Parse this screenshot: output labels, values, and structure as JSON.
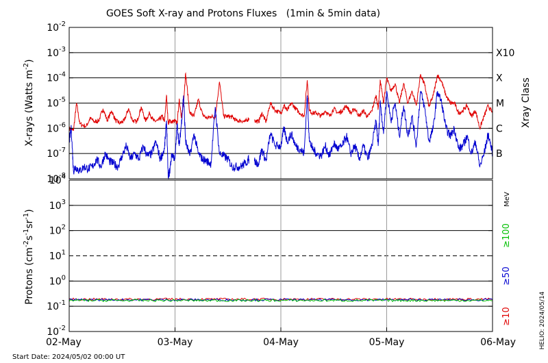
{
  "chart_data": [
    {
      "type": "line",
      "title": "GOES Soft X-ray and Protons Fluxes   (1min & 5min data)",
      "ylabel": "X-rays (Watts m^-2)",
      "ylabel_main": "X-rays (Watts m",
      "ylabel_sup": "-2",
      "ylabel_close": ")",
      "y_scale": "log",
      "ylim": [
        1e-08,
        0.01
      ],
      "ytick_exponents": [
        "-2",
        "-3",
        "-4",
        "-5",
        "-6",
        "-7",
        "-8"
      ],
      "grid_lines": [
        0.001,
        0.0001,
        1e-05,
        1e-06,
        1e-07
      ],
      "right_axis_label": "Xray Class",
      "class_labels": [
        {
          "label": "X10",
          "level": 0.001
        },
        {
          "label": "X",
          "level": 0.0001
        },
        {
          "label": "M",
          "level": 1e-05
        },
        {
          "label": "C",
          "level": 1e-06
        },
        {
          "label": "B",
          "level": 1e-07
        }
      ],
      "x_range_days": [
        0,
        4
      ],
      "colors": {
        "long_channel": "#e00000",
        "short_channel": "#0000d0",
        "grid": "#000000",
        "day_lines": "#9a9a9a"
      },
      "series": [
        {
          "channel": "long",
          "color": "#e00000",
          "x_days": [
            0.0,
            0.04,
            0.07,
            0.1,
            0.16,
            0.2,
            0.24,
            0.28,
            0.32,
            0.36,
            0.4,
            0.44,
            0.48,
            0.52,
            0.56,
            0.6,
            0.64,
            0.68,
            0.72,
            0.76,
            0.8,
            0.84,
            0.88,
            0.9,
            0.92,
            0.935,
            0.95,
            0.97,
            1.0,
            1.02,
            1.04,
            1.06,
            1.08,
            1.1,
            1.14,
            1.18,
            1.22,
            1.26,
            1.3,
            1.34,
            1.38,
            1.42,
            1.46,
            1.5,
            1.54,
            1.58,
            1.62,
            1.66,
            1.7
          ],
          "y": [
            1e-06,
            8e-07,
            1e-05,
            1.5e-06,
            1.2e-06,
            2.5e-06,
            1.8e-06,
            2e-06,
            6e-06,
            2e-06,
            5e-06,
            2e-06,
            1.6e-06,
            2e-06,
            6e-06,
            2e-06,
            1.8e-06,
            7e-06,
            2e-06,
            4e-06,
            1.9e-06,
            2e-06,
            3e-06,
            1.8e-06,
            2e-05,
            1.6e-06,
            2e-06,
            1.8e-06,
            2e-06,
            1.5e-06,
            1.5e-05,
            2.5e-06,
            1e-05,
            0.00015,
            4e-06,
            3e-06,
            1.4e-05,
            3.5e-06,
            2.5e-06,
            3e-06,
            2.7e-06,
            7e-05,
            3e-06,
            3e-06,
            2.8e-06,
            2e-06,
            2e-06,
            1.8e-06,
            2.5e-06
          ]
        },
        {
          "channel": "long",
          "color": "#e00000",
          "x_days": [
            1.75,
            1.79,
            1.82,
            1.86,
            1.9,
            1.95,
            2.0,
            2.03,
            2.06,
            2.1,
            2.14,
            2.18,
            2.22,
            2.25,
            2.27,
            2.3,
            2.34,
            2.38,
            2.42,
            2.46,
            2.5,
            2.54,
            2.58,
            2.62,
            2.66,
            2.7,
            2.74,
            2.78,
            2.82,
            2.86,
            2.9,
            2.92,
            2.94,
            2.97,
            3.0,
            3.04,
            3.08,
            3.12,
            3.16,
            3.2,
            3.24,
            3.28,
            3.32,
            3.36,
            3.4,
            3.44,
            3.48,
            3.52,
            3.56,
            3.6,
            3.64,
            3.68,
            3.72,
            3.76,
            3.8,
            3.84,
            3.88,
            3.92,
            3.96,
            4.0
          ],
          "y": [
            2e-06,
            1.8e-06,
            4e-06,
            1.8e-06,
            1e-05,
            5e-06,
            4e-06,
            8e-06,
            5e-06,
            1e-05,
            6e-06,
            4e-06,
            3e-06,
            8e-05,
            5e-06,
            4e-06,
            4e-06,
            3e-06,
            5e-06,
            3e-06,
            6e-06,
            4e-06,
            5e-06,
            8e-06,
            4e-06,
            6e-06,
            3e-06,
            5e-06,
            2.8e-06,
            5e-06,
            2e-05,
            6e-06,
            8e-05,
            1e-05,
            0.0001,
            3e-05,
            6e-05,
            1e-05,
            6e-05,
            1e-05,
            3e-05,
            8e-06,
            0.00014,
            5e-05,
            7e-06,
            2e-05,
            0.00013,
            7e-05,
            2e-05,
            1e-05,
            1e-05,
            4e-06,
            5e-06,
            8e-06,
            3e-06,
            5e-06,
            1e-06,
            3e-06,
            8e-06,
            4e-06
          ]
        },
        {
          "channel": "short",
          "color": "#0000d0",
          "x_days": [
            0.0,
            0.02,
            0.04,
            0.06,
            0.1,
            0.14,
            0.18,
            0.22,
            0.26,
            0.3,
            0.34,
            0.38,
            0.42,
            0.46,
            0.5,
            0.54,
            0.58,
            0.62,
            0.66,
            0.7,
            0.74,
            0.78,
            0.82,
            0.86,
            0.9,
            0.92,
            0.935,
            0.95,
            0.97,
            1.0,
            1.02,
            1.04,
            1.06,
            1.08,
            1.1,
            1.14,
            1.18,
            1.22,
            1.26,
            1.3,
            1.34,
            1.38,
            1.42,
            1.46,
            1.5,
            1.54,
            1.58,
            1.62,
            1.66,
            1.7
          ],
          "y": [
            3e-07,
            1e-06,
            2e-08,
            3e-08,
            2e-08,
            3e-08,
            2.5e-08,
            3e-08,
            6e-08,
            3e-08,
            1e-07,
            5e-08,
            4e-08,
            3e-08,
            8e-08,
            2e-07,
            6e-08,
            1e-07,
            6e-08,
            2e-07,
            8e-08,
            1e-07,
            3e-07,
            6e-08,
            1.5e-07,
            2e-06,
            1.2e-08,
            2e-08,
            1e-07,
            6e-08,
            1.5e-06,
            2e-07,
            1.5e-06,
            2e-05,
            3e-07,
            8e-08,
            6e-07,
            1e-07,
            6e-08,
            5e-08,
            4e-08,
            7e-06,
            1e-07,
            8e-08,
            6e-08,
            3e-08,
            3e-08,
            3e-08,
            4e-08,
            6e-08
          ]
        },
        {
          "channel": "short",
          "color": "#0000d0",
          "x_days": [
            1.75,
            1.79,
            1.82,
            1.86,
            1.9,
            1.95,
            2.0,
            2.03,
            2.06,
            2.1,
            2.14,
            2.18,
            2.22,
            2.25,
            2.27,
            2.3,
            2.34,
            2.38,
            2.42,
            2.46,
            2.5,
            2.54,
            2.58,
            2.62,
            2.66,
            2.7,
            2.74,
            2.78,
            2.82,
            2.86,
            2.9,
            2.92,
            2.94,
            2.97,
            3.0,
            3.04,
            3.08,
            3.12,
            3.16,
            3.2,
            3.24,
            3.28,
            3.32,
            3.36,
            3.4,
            3.44,
            3.48,
            3.52,
            3.56,
            3.6,
            3.64,
            3.68,
            3.72,
            3.76,
            3.8,
            3.84,
            3.88,
            3.92,
            3.96,
            4.0
          ],
          "y": [
            5e-08,
            4e-08,
            1.5e-07,
            5e-08,
            6e-07,
            2e-07,
            2e-07,
            1e-06,
            3e-07,
            6e-07,
            2e-07,
            1.5e-07,
            1e-07,
            2e-05,
            3e-07,
            1.5e-07,
            1e-07,
            8e-08,
            2e-07,
            8e-08,
            2.5e-07,
            1.5e-07,
            2e-07,
            5e-07,
            1e-07,
            2e-07,
            6e-08,
            2e-07,
            6e-08,
            2e-07,
            2e-06,
            2e-07,
            1.2e-05,
            6e-07,
            3e-05,
            2e-06,
            1e-05,
            5e-07,
            8e-06,
            5e-07,
            3e-06,
            2e-07,
            3e-05,
            6e-06,
            3e-07,
            1e-06,
            3e-05,
            1e-05,
            1e-06,
            5e-07,
            1e-06,
            1.5e-07,
            2e-07,
            5e-07,
            1e-07,
            3e-07,
            3e-08,
            1e-07,
            6e-07,
            1e-07
          ]
        }
      ]
    },
    {
      "type": "line",
      "ylabel": "Protons (cm^-2 s^-1 sr^-1)",
      "y_scale": "log",
      "ylim": [
        0.01,
        10000
      ],
      "ytick_exponents": [
        "4",
        "3",
        "2",
        "1",
        "0",
        "-1",
        "-2"
      ],
      "grid_solid": [
        1000,
        100,
        1,
        0.1
      ],
      "grid_dashed": [
        10
      ],
      "unit_label": "MeV",
      "channel_labels": [
        {
          "label": "≥100",
          "color": "#00c000"
        },
        {
          "label": "≥50",
          "color": "#0000d0"
        },
        {
          "label": "≥10",
          "color": "#e00000"
        }
      ],
      "series": [
        {
          "name": "≥10",
          "color": "#e00000",
          "level": 0.19,
          "x_days": [
            0,
            4
          ]
        },
        {
          "name": "≥50",
          "color": "#0000d0",
          "level": 0.18,
          "x_days": [
            0,
            4
          ]
        },
        {
          "name": "≥100",
          "color": "#00c000",
          "level": 0.17,
          "x_days": [
            0,
            4
          ]
        }
      ]
    }
  ],
  "x_axis": {
    "tick_labels": [
      "02-May",
      "03-May",
      "04-May",
      "05-May",
      "06-May"
    ],
    "tick_days": [
      0,
      1,
      2,
      3,
      4
    ]
  },
  "footer": {
    "start_date": "Start Date: 2024/05/02 00:00 UT",
    "credit": "HELIO: 2024/05/14"
  }
}
